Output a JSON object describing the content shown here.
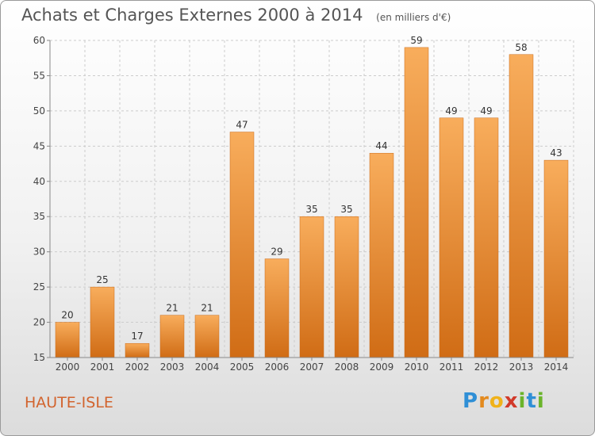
{
  "header": {
    "title": "Achats et Charges Externes 2000 à 2014",
    "unit": "(en milliers d'€)"
  },
  "commune": "HAUTE-ISLE",
  "brand": {
    "letters": [
      "P",
      "r",
      "o",
      "x",
      "i",
      "t",
      "i"
    ],
    "colors": [
      "#2f8fd6",
      "#e38a1f",
      "#f0b21a",
      "#d13a2a",
      "#6bb42b",
      "#2f8fd6",
      "#6bb42b"
    ]
  },
  "colors": {
    "bar_light": "#f8ad5c",
    "bar_dark": "#d06c15",
    "grid": "#cccccc",
    "axis": "#888888"
  },
  "chart_data": {
    "type": "bar",
    "title": "Achats et Charges Externes 2000 à 2014",
    "subtitle": "(en milliers d'€)",
    "xlabel": "",
    "ylabel": "",
    "categories": [
      "2000",
      "2001",
      "2002",
      "2003",
      "2004",
      "2005",
      "2006",
      "2007",
      "2008",
      "2009",
      "2010",
      "2011",
      "2012",
      "2013",
      "2014"
    ],
    "values": [
      20,
      25,
      17,
      21,
      21,
      47,
      29,
      35,
      35,
      44,
      59,
      49,
      49,
      58,
      43
    ],
    "ylim": [
      15,
      60
    ],
    "yticks": [
      15,
      20,
      25,
      30,
      35,
      40,
      45,
      50,
      55,
      60
    ],
    "grid": true,
    "legend": "none"
  }
}
